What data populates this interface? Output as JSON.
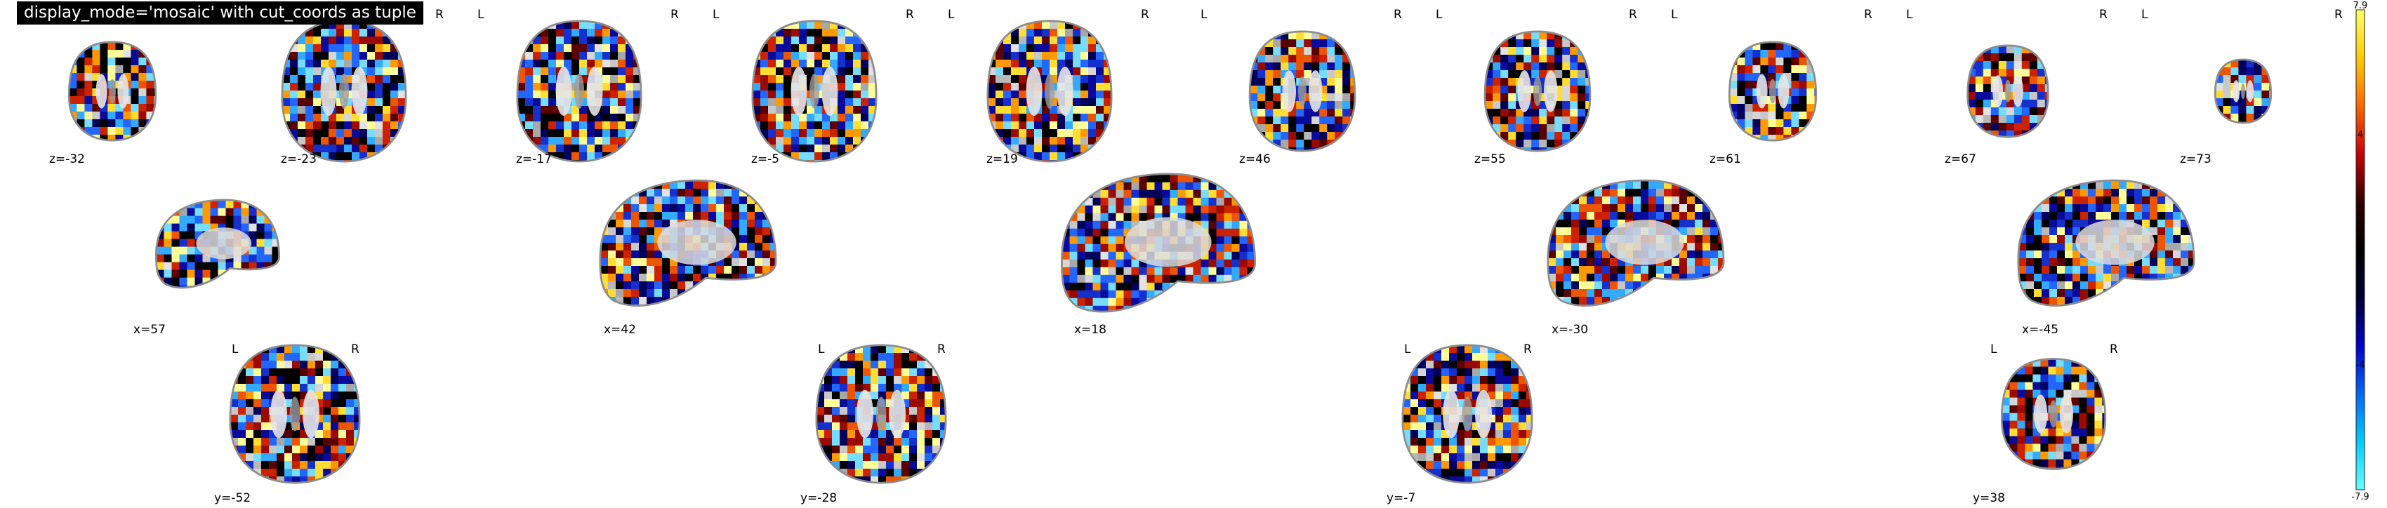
{
  "title": "display_mode='mosaic' with cut_coords as tuple",
  "orientation_labels": {
    "left": "L",
    "right": "R"
  },
  "axial": {
    "labels": [
      "z=-32",
      "z=-23",
      "z=-17",
      "z=-5",
      "z=19",
      "z=46",
      "z=55",
      "z=61",
      "z=67",
      "z=73"
    ],
    "scale": [
      0.7,
      1.0,
      1.0,
      1.0,
      1.0,
      0.85,
      0.85,
      0.7,
      0.65,
      0.45
    ]
  },
  "sagittal": {
    "labels": [
      "x=57",
      "x=42",
      "x=18",
      "x=-30",
      "x=-45"
    ]
  },
  "coronal": {
    "labels": [
      "y=-52",
      "y=-28",
      "y=-7",
      "y=38"
    ],
    "scale": [
      1.0,
      1.0,
      1.0,
      0.8
    ]
  },
  "colorbar": {
    "ticks": [
      "7.9",
      "4",
      "0",
      "-4",
      "-7.9"
    ],
    "colors": [
      "#ffff66",
      "#ffcc00",
      "#ff6600",
      "#cc0000",
      "#330000",
      "#000000",
      "#000033",
      "#0000cc",
      "#0066ff",
      "#00ccff",
      "#66ffff"
    ]
  },
  "palette": {
    "pos": [
      "#5a0000",
      "#9a0a00",
      "#cc2200",
      "#ee5500",
      "#ff9900",
      "#ffdd33",
      "#ffff99"
    ],
    "neg": [
      "#00005a",
      "#0a0a9a",
      "#1530cc",
      "#2266ff",
      "#33aaff",
      "#77ddff"
    ],
    "gray": [
      "#b8b8b8",
      "#c8c8c8",
      "#d6d6d6",
      "#e2e2e2",
      "#a8a8a8"
    ]
  }
}
